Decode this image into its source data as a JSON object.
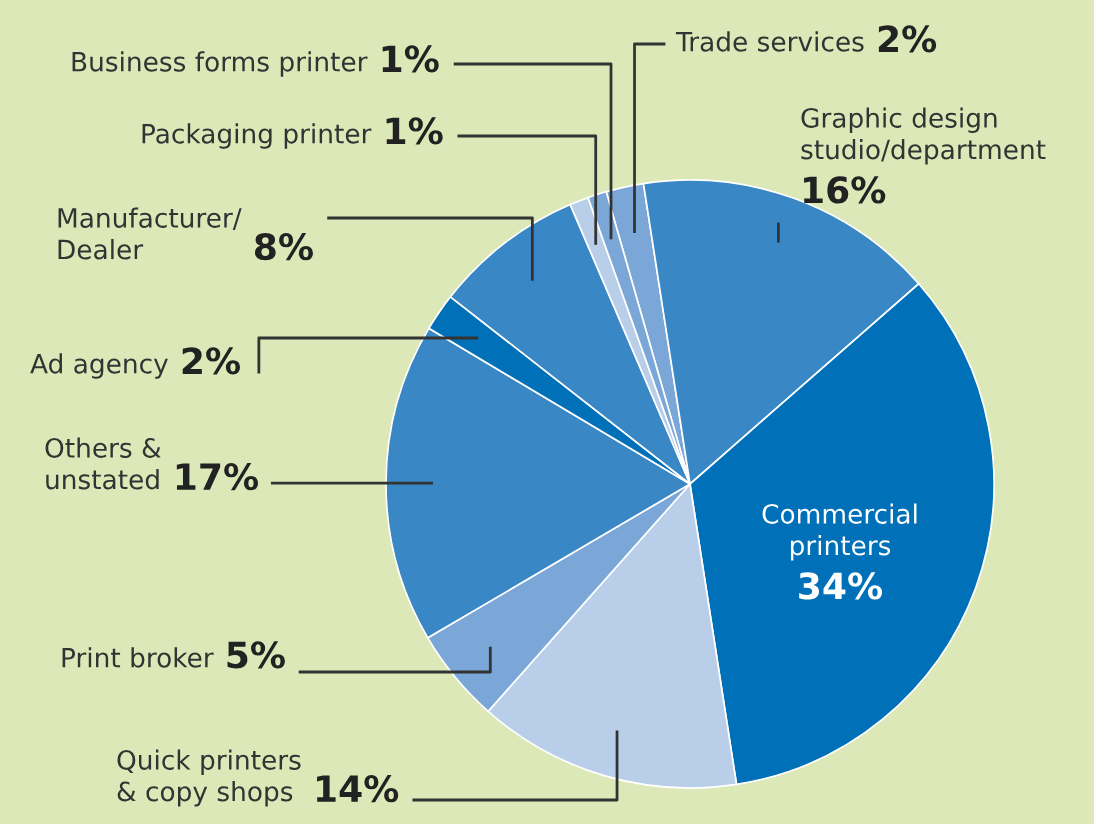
{
  "chart_data": {
    "type": "pie",
    "categories": [
      "Trade services",
      "Graphic design\nstudio/department",
      "Commercial\nprinters",
      "Quick printers\n& copy shops",
      "Print broker",
      "Others &\nunstated",
      "Ad agency",
      "Manufacturer/\nDealer",
      "Packaging printer",
      "Business forms printer"
    ],
    "values": [
      2,
      16,
      34,
      14,
      5,
      17,
      2,
      8,
      1,
      1
    ],
    "value_labels": [
      "2%",
      "16%",
      "34%",
      "14%",
      "5%",
      "17%",
      "2%",
      "8%",
      "1%",
      "1%"
    ],
    "colors": [
      "#7ba7d8",
      "#3a87c6",
      "#0070b8",
      "#b9cfe9",
      "#7ba7d8",
      "#3a87c6",
      "#0070b8",
      "#3a87c6",
      "#b9cfe9",
      "#7ba7d8"
    ]
  }
}
